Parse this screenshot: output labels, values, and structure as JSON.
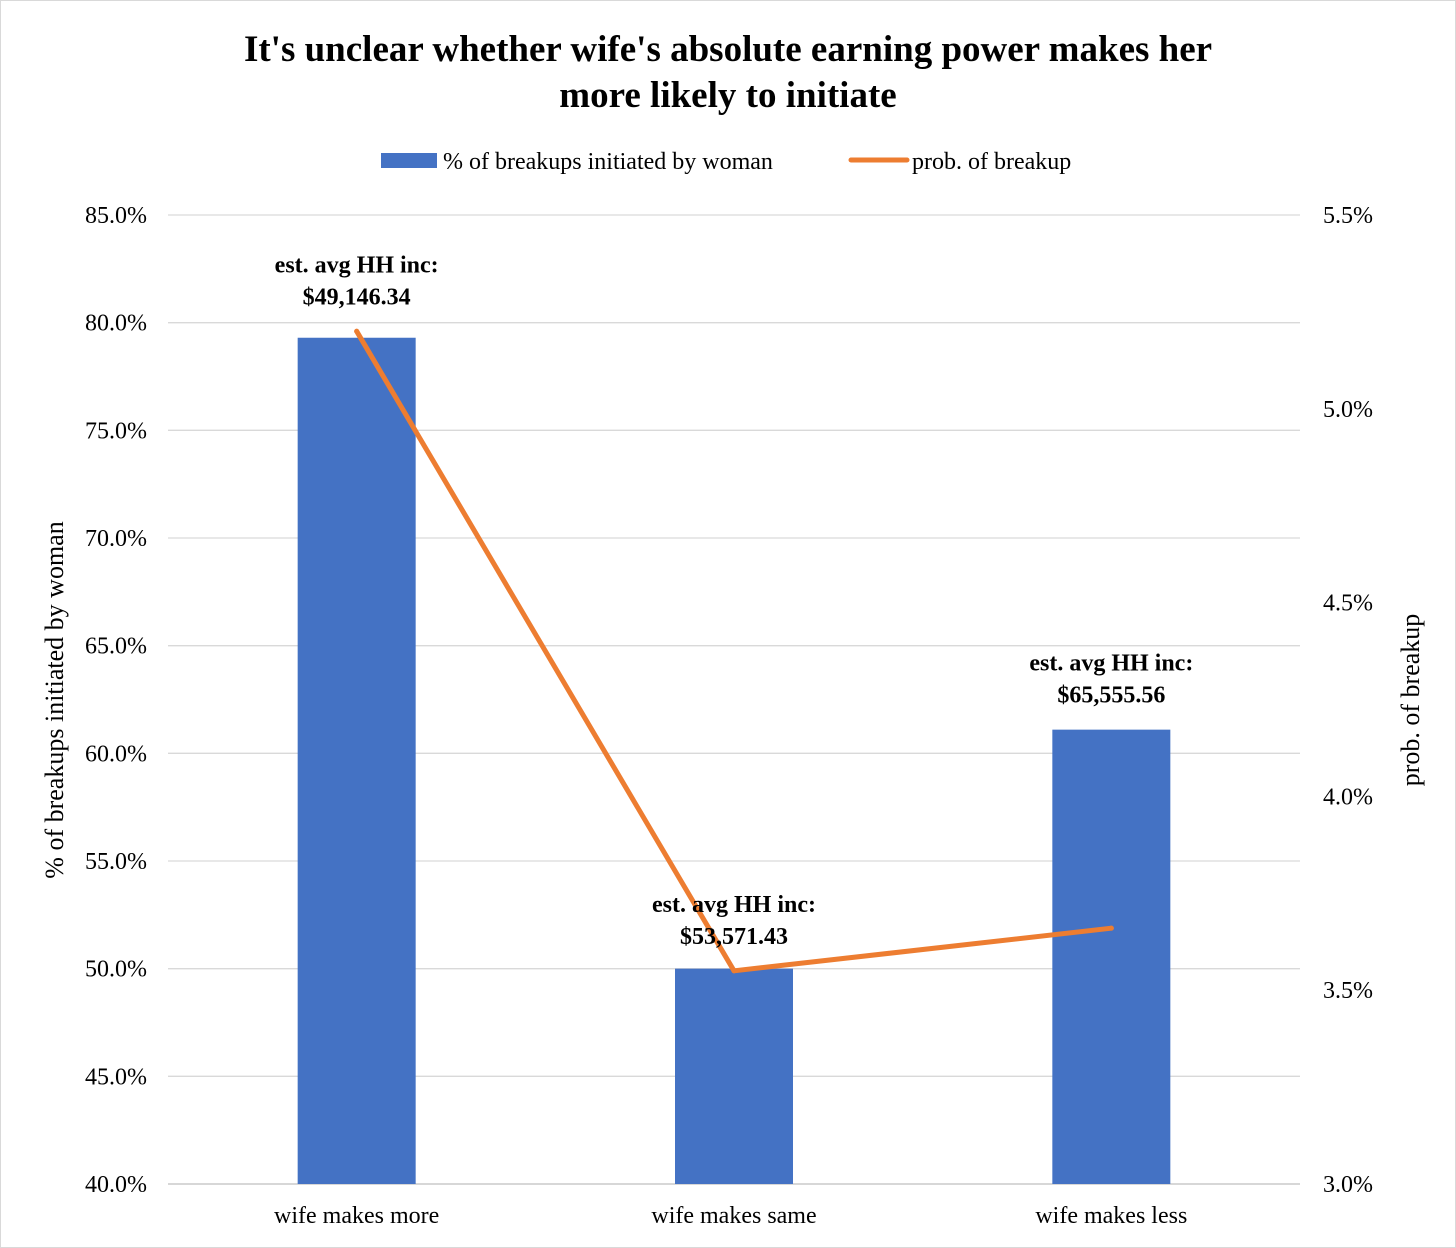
{
  "chart_data": {
    "type": "bar",
    "title_lines": [
      "It's unclear whether wife's absolute earning power makes her",
      "more likely to initiate"
    ],
    "categories": [
      "wife makes more",
      "wife makes same",
      "wife makes less"
    ],
    "series": [
      {
        "name": "% of breakups initiated by woman",
        "type": "bar",
        "axis": "left",
        "color": "#4472C4",
        "values": [
          79.3,
          50.0,
          61.1
        ]
      },
      {
        "name": "prob. of breakup",
        "type": "line",
        "axis": "right",
        "color": "#ED7D31",
        "values": [
          5.2,
          3.55,
          3.66
        ]
      }
    ],
    "y_left": {
      "label": "% of breakups initiated by woman",
      "min": 40,
      "max": 85,
      "ticks": [
        "40.0%",
        "45.0%",
        "50.0%",
        "55.0%",
        "60.0%",
        "65.0%",
        "70.0%",
        "75.0%",
        "80.0%",
        "85.0%"
      ]
    },
    "y_right": {
      "label": "prob. of breakup",
      "min": 3.0,
      "max": 5.5,
      "ticks": [
        "3.0%",
        "3.5%",
        "4.0%",
        "4.5%",
        "5.0%",
        "5.5%"
      ]
    },
    "annotations": [
      {
        "category": "wife makes more",
        "line1": "est. avg HH inc:",
        "line2": "$49,146.34"
      },
      {
        "category": "wife makes same",
        "line1": "est. avg HH inc:",
        "line2": "$53,571.43"
      },
      {
        "category": "wife makes less",
        "line1": "est. avg HH inc:",
        "line2": "$65,555.56"
      }
    ],
    "grid": true,
    "legend_position": "top"
  }
}
